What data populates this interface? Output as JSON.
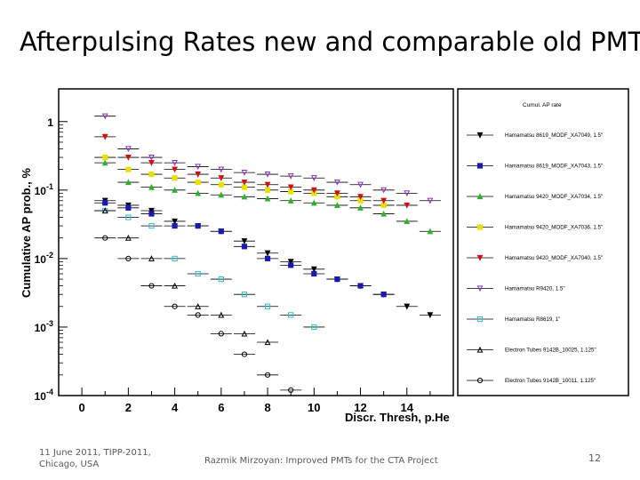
{
  "slide": {
    "title": "Afterpulsing Rates new and comparable old PMTs",
    "footer_left_line1": "11 June 2011, TIPP-2011,",
    "footer_left_line2": "Chicago, USA",
    "footer_center": "Razmik Mirzoyan: Improved PMTs for the CTA Project",
    "page_number": "12"
  },
  "chart_data": {
    "type": "scatter",
    "title": "",
    "xlabel": "Discr. Thresh, p.He",
    "ylabel": "Cumulative AP prob., %",
    "xlim": [
      -1,
      16
    ],
    "ylim": [
      0.0001,
      3
    ],
    "yscale": "log",
    "xticks": [
      "0",
      "2",
      "4",
      "6",
      "8",
      "10",
      "12",
      "14"
    ],
    "yticks": [
      "1",
      "10^-1",
      "10^-2",
      "10^-3",
      "10^-4"
    ],
    "legend_title": "Cumul. AP rate",
    "legend_position": "right",
    "series": [
      {
        "name": "Hamamatsu 8619_MODF_XA7049, 1.5\"",
        "color": "#000000",
        "marker": "tri-down",
        "x": [
          1,
          2,
          3,
          4,
          5,
          6,
          7,
          8,
          9,
          10,
          11,
          12,
          13,
          14,
          15
        ],
        "y": [
          0.07,
          0.06,
          0.05,
          0.035,
          0.03,
          0.025,
          0.018,
          0.012,
          0.009,
          0.007,
          0.005,
          0.004,
          0.003,
          0.002,
          0.0015
        ]
      },
      {
        "name": "Hamamatsu 8619_MODF_XA7043, 1.5\"",
        "color": "#1a1ab0",
        "marker": "square",
        "x": [
          1,
          2,
          3,
          4,
          5,
          6,
          7,
          8,
          9,
          10,
          11,
          12,
          13
        ],
        "y": [
          0.065,
          0.055,
          0.045,
          0.03,
          0.03,
          0.025,
          0.015,
          0.01,
          0.008,
          0.006,
          0.005,
          0.004,
          0.003
        ]
      },
      {
        "name": "Hamamatsu 9420_MODF_XA7034, 1.5\"",
        "color": "#30b030",
        "marker": "tri-up",
        "x": [
          1,
          2,
          3,
          4,
          5,
          6,
          7,
          8,
          9,
          10,
          11,
          12,
          13,
          14,
          15
        ],
        "y": [
          0.25,
          0.13,
          0.11,
          0.1,
          0.09,
          0.085,
          0.08,
          0.075,
          0.07,
          0.065,
          0.06,
          0.055,
          0.045,
          0.035,
          0.025
        ]
      },
      {
        "name": "Hamamatsu 9420_MODF_XA7036, 1.5\"",
        "color": "#e8e000",
        "marker": "square",
        "x": [
          1,
          2,
          3,
          4,
          5,
          6,
          7,
          8,
          9,
          10,
          11,
          12,
          13
        ],
        "y": [
          0.3,
          0.2,
          0.17,
          0.15,
          0.13,
          0.12,
          0.11,
          0.1,
          0.095,
          0.09,
          0.08,
          0.07,
          0.06
        ]
      },
      {
        "name": "Hamamatsu 9420_MODF_XA7040, 1.5\"",
        "color": "#d01010",
        "marker": "tri-down",
        "x": [
          1,
          2,
          3,
          4,
          5,
          6,
          7,
          8,
          9,
          10,
          11,
          12,
          13,
          14
        ],
        "y": [
          0.6,
          0.3,
          0.25,
          0.2,
          0.17,
          0.15,
          0.13,
          0.12,
          0.11,
          0.1,
          0.09,
          0.08,
          0.07,
          0.06
        ]
      },
      {
        "name": "Hamamatsu R9420, 1.5\"",
        "color": "#9030c0",
        "marker": "tri-down-open",
        "x": [
          1,
          2,
          3,
          4,
          5,
          6,
          7,
          8,
          9,
          10,
          11,
          12,
          13,
          14,
          15
        ],
        "y": [
          1.2,
          0.4,
          0.3,
          0.25,
          0.22,
          0.2,
          0.18,
          0.17,
          0.16,
          0.15,
          0.13,
          0.12,
          0.1,
          0.09,
          0.07
        ]
      },
      {
        "name": "Hamamatsu R8619, 1\"",
        "color": "#30b8d0",
        "marker": "square-open",
        "x": [
          1,
          2,
          3,
          4,
          5,
          6,
          7,
          8,
          9,
          10
        ],
        "y": [
          0.05,
          0.04,
          0.03,
          0.01,
          0.006,
          0.005,
          0.003,
          0.002,
          0.0015,
          0.001
        ]
      },
      {
        "name": "Electron Tubes 9142B_10025, 1.125\"",
        "color": "#000000",
        "marker": "tri-up-open",
        "x": [
          1,
          2,
          3,
          4,
          5,
          6,
          7,
          8
        ],
        "y": [
          0.05,
          0.02,
          0.01,
          0.004,
          0.002,
          0.0015,
          0.0008,
          0.0006
        ]
      },
      {
        "name": "Electron Tubes 9142B_10011, 1.125\"",
        "color": "#000000",
        "marker": "circle-open",
        "x": [
          1,
          2,
          3,
          4,
          5,
          6,
          7,
          8,
          9
        ],
        "y": [
          0.02,
          0.01,
          0.004,
          0.002,
          0.0015,
          0.0008,
          0.0004,
          0.0002,
          0.00012
        ]
      }
    ]
  }
}
